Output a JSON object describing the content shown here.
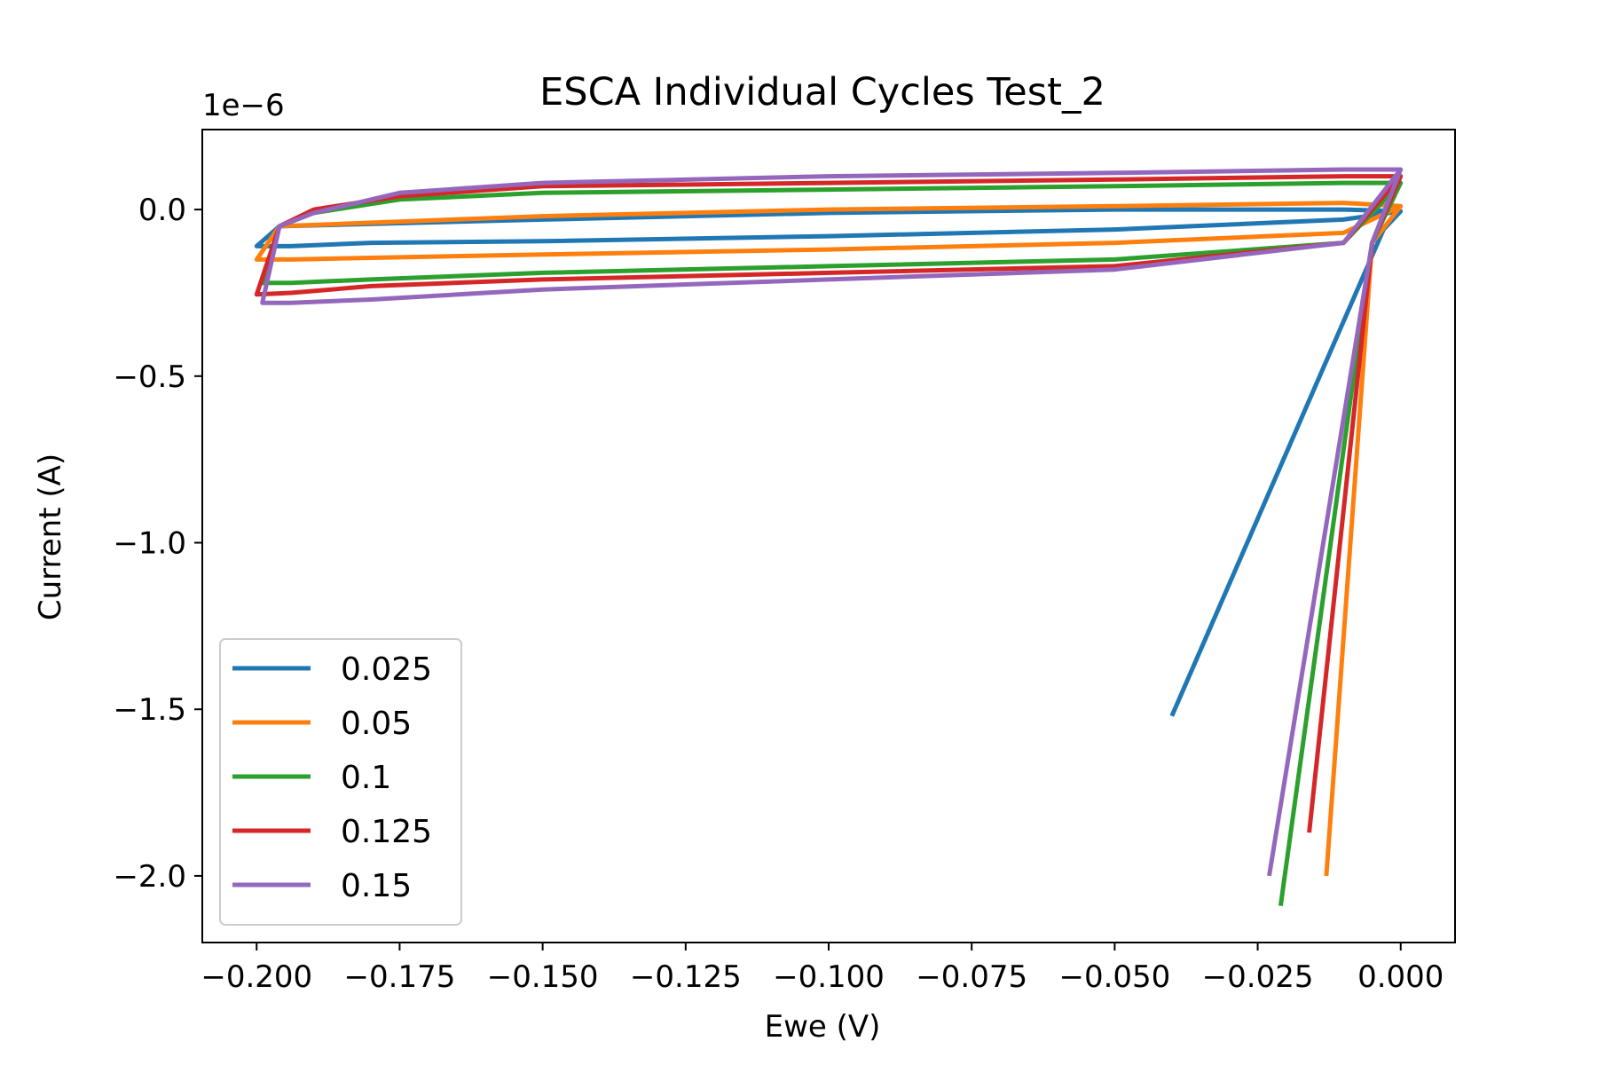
{
  "chart_data": {
    "type": "line",
    "title": "ESCA Individual Cycles Test_2",
    "xlabel": "Ewe (V)",
    "ylabel": "Current (A)",
    "y_offset_text": "1e−6",
    "xlim": [
      -0.2095,
      0.0095
    ],
    "ylim": [
      -2.2,
      0.24
    ],
    "xticks": [
      -0.2,
      -0.175,
      -0.15,
      -0.125,
      -0.1,
      -0.075,
      -0.05,
      -0.025,
      0.0
    ],
    "xtick_labels": [
      "−0.200",
      "−0.175",
      "−0.150",
      "−0.125",
      "−0.100",
      "−0.075",
      "−0.050",
      "−0.025",
      "0.000"
    ],
    "yticks": [
      0.0,
      -0.5,
      -1.0,
      -1.5,
      -2.0
    ],
    "ytick_labels": [
      "0.0",
      "−0.5",
      "−1.0",
      "−1.5",
      "−2.0"
    ],
    "legend_position": "lower-left",
    "grid": false,
    "series": [
      {
        "name": "0.025",
        "color": "#1f77b4",
        "x": [
          -0.04,
          -0.003,
          0.0,
          -0.01,
          -0.05,
          -0.1,
          -0.15,
          -0.18,
          -0.194,
          -0.2,
          -0.196,
          -0.15,
          -0.1,
          -0.05,
          -0.01,
          0.0
        ],
        "y": [
          -1.52,
          -0.06,
          -0.005,
          -0.03,
          -0.06,
          -0.08,
          -0.095,
          -0.1,
          -0.11,
          -0.11,
          -0.05,
          -0.03,
          -0.01,
          0.0,
          0.0,
          -0.005
        ]
      },
      {
        "name": "0.05",
        "color": "#ff7f0e",
        "x": [
          -0.013,
          -0.005,
          0.0,
          -0.01,
          -0.05,
          -0.1,
          -0.15,
          -0.18,
          -0.194,
          -0.2,
          -0.196,
          -0.15,
          -0.1,
          -0.05,
          -0.01,
          0.0
        ],
        "y": [
          -2.0,
          -0.1,
          0.01,
          -0.07,
          -0.1,
          -0.12,
          -0.135,
          -0.145,
          -0.15,
          -0.15,
          -0.05,
          -0.02,
          0.0,
          0.01,
          0.02,
          0.01
        ]
      },
      {
        "name": "0.1",
        "color": "#2ca02c",
        "x": [
          -0.021,
          -0.005,
          0.0,
          -0.01,
          -0.05,
          -0.1,
          -0.15,
          -0.18,
          -0.194,
          -0.199,
          -0.196,
          -0.19,
          -0.175,
          -0.15,
          -0.1,
          -0.05,
          -0.01,
          0.0
        ],
        "y": [
          -2.09,
          -0.1,
          0.08,
          -0.1,
          -0.15,
          -0.17,
          -0.19,
          -0.21,
          -0.22,
          -0.22,
          -0.05,
          -0.01,
          0.03,
          0.05,
          0.06,
          0.07,
          0.08,
          0.08
        ]
      },
      {
        "name": "0.125",
        "color": "#d62728",
        "x": [
          -0.016,
          -0.005,
          0.0,
          -0.01,
          -0.05,
          -0.1,
          -0.15,
          -0.18,
          -0.194,
          -0.2,
          -0.196,
          -0.19,
          -0.175,
          -0.15,
          -0.1,
          -0.05,
          -0.01,
          0.0
        ],
        "y": [
          -1.87,
          -0.1,
          0.1,
          -0.1,
          -0.17,
          -0.19,
          -0.21,
          -0.23,
          -0.25,
          -0.255,
          -0.05,
          0.0,
          0.04,
          0.07,
          0.08,
          0.09,
          0.1,
          0.1
        ]
      },
      {
        "name": "0.15",
        "color": "#9467bd",
        "x": [
          -0.023,
          -0.005,
          0.0,
          -0.01,
          -0.05,
          -0.1,
          -0.15,
          -0.18,
          -0.194,
          -0.199,
          -0.196,
          -0.19,
          -0.175,
          -0.15,
          -0.1,
          -0.05,
          -0.01,
          0.0
        ],
        "y": [
          -2.0,
          -0.1,
          0.12,
          -0.1,
          -0.18,
          -0.21,
          -0.24,
          -0.27,
          -0.28,
          -0.28,
          -0.05,
          -0.01,
          0.05,
          0.08,
          0.1,
          0.11,
          0.12,
          0.12
        ]
      }
    ]
  }
}
